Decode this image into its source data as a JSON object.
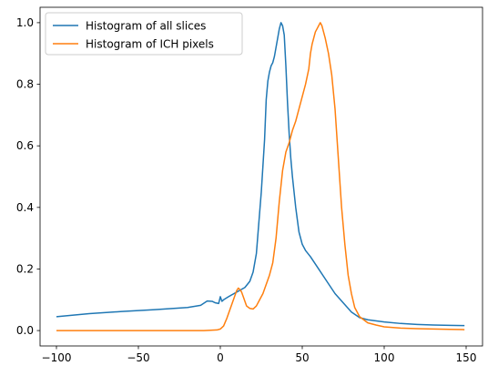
{
  "chart_data": {
    "type": "line",
    "title": "",
    "xlabel": "",
    "ylabel": "",
    "xlim": [
      -110,
      160
    ],
    "ylim": [
      -0.05,
      1.05
    ],
    "xticks": [
      -100,
      -50,
      0,
      50,
      100,
      150
    ],
    "yticks": [
      0.0,
      0.2,
      0.4,
      0.6,
      0.8,
      1.0
    ],
    "x_tick_labels": [
      "−100",
      "−50",
      "0",
      "50",
      "100",
      "150"
    ],
    "y_tick_labels": [
      "0.0",
      "0.2",
      "0.4",
      "0.6",
      "0.8",
      "1.0"
    ],
    "grid": false,
    "legend_position": "top-left",
    "series": [
      {
        "name": "Histogram of all slices",
        "color": "#1f77b4",
        "x": [
          -100,
          -80,
          -60,
          -40,
          -20,
          -12,
          -8,
          -5,
          -3,
          -1,
          0,
          1,
          2,
          5,
          10,
          15,
          18,
          20,
          22,
          25,
          27,
          28,
          29,
          30,
          31,
          32,
          33,
          34,
          35,
          36,
          37,
          38,
          39,
          40,
          41,
          42,
          43,
          44,
          45,
          46,
          47,
          48,
          50,
          52,
          55,
          60,
          65,
          70,
          75,
          80,
          85,
          90,
          100,
          110,
          120,
          130,
          140,
          149
        ],
        "y": [
          0.045,
          0.055,
          0.062,
          0.068,
          0.075,
          0.082,
          0.096,
          0.095,
          0.09,
          0.088,
          0.11,
          0.095,
          0.1,
          0.11,
          0.125,
          0.14,
          0.16,
          0.19,
          0.25,
          0.45,
          0.62,
          0.75,
          0.81,
          0.84,
          0.86,
          0.87,
          0.89,
          0.92,
          0.95,
          0.98,
          1.0,
          0.99,
          0.96,
          0.86,
          0.74,
          0.64,
          0.56,
          0.5,
          0.45,
          0.4,
          0.36,
          0.32,
          0.28,
          0.26,
          0.24,
          0.2,
          0.16,
          0.12,
          0.09,
          0.06,
          0.042,
          0.035,
          0.028,
          0.023,
          0.02,
          0.018,
          0.017,
          0.016
        ]
      },
      {
        "name": "Histogram of ICH pixels",
        "color": "#ff7f0e",
        "x": [
          -100,
          -50,
          -10,
          -2,
          0,
          2,
          4,
          6,
          8,
          10,
          11,
          12,
          13,
          14,
          15,
          16,
          18,
          20,
          22,
          24,
          26,
          28,
          30,
          32,
          34,
          36,
          38,
          40,
          42,
          44,
          46,
          48,
          50,
          52,
          54,
          55,
          56,
          57,
          58,
          59,
          60,
          61,
          62,
          63,
          64,
          66,
          68,
          70,
          72,
          74,
          76,
          78,
          80,
          82,
          85,
          90,
          95,
          100,
          110,
          120,
          130,
          140,
          149
        ],
        "y": [
          0.0,
          0.0,
          0.0,
          0.002,
          0.005,
          0.015,
          0.04,
          0.07,
          0.1,
          0.13,
          0.138,
          0.133,
          0.125,
          0.11,
          0.095,
          0.08,
          0.072,
          0.07,
          0.08,
          0.1,
          0.12,
          0.15,
          0.18,
          0.22,
          0.3,
          0.42,
          0.52,
          0.58,
          0.61,
          0.65,
          0.68,
          0.72,
          0.76,
          0.8,
          0.85,
          0.9,
          0.93,
          0.95,
          0.97,
          0.98,
          0.99,
          1.0,
          0.99,
          0.97,
          0.95,
          0.9,
          0.83,
          0.72,
          0.56,
          0.4,
          0.28,
          0.18,
          0.12,
          0.075,
          0.045,
          0.025,
          0.018,
          0.012,
          0.008,
          0.006,
          0.005,
          0.004,
          0.003
        ]
      }
    ]
  }
}
